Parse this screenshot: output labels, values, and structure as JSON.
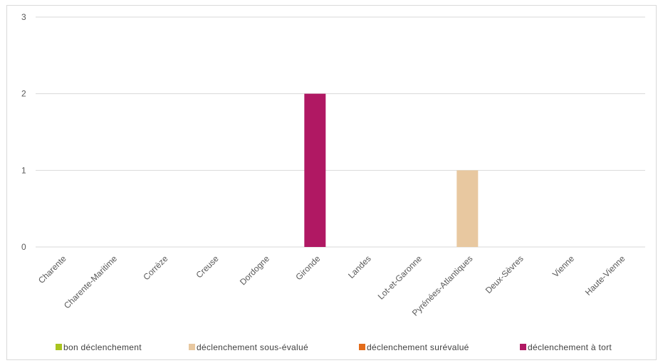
{
  "chart_data": {
    "type": "bar",
    "categories": [
      "Charente",
      "Charente-Maritime",
      "Corrèze",
      "Creuse",
      "Dordogne",
      "Gironde",
      "Landes",
      "Lot-et-Garonne",
      "Pyrénées-Atlantiques",
      "Deux-Sèvres",
      "Vienne",
      "Haute-Vienne"
    ],
    "series": [
      {
        "name": "bon déclenchement",
        "color": "#a9c41f",
        "values": [
          0,
          0,
          0,
          0,
          0,
          0,
          0,
          0,
          0,
          0,
          0,
          0
        ]
      },
      {
        "name": "déclenchement sous-évalué",
        "color": "#e8c8a0",
        "values": [
          0,
          0,
          0,
          0,
          0,
          0,
          0,
          0,
          1,
          0,
          0,
          0
        ]
      },
      {
        "name": "déclenchement surévalué",
        "color": "#e36c1b",
        "values": [
          0,
          0,
          0,
          0,
          0,
          0,
          0,
          0,
          0,
          0,
          0,
          0
        ]
      },
      {
        "name": "déclenchement à tort",
        "color": "#b01863",
        "values": [
          0,
          0,
          0,
          0,
          0,
          2,
          0,
          0,
          0,
          0,
          0,
          0
        ]
      }
    ],
    "yticks": [
      "0",
      "1",
      "2",
      "3"
    ],
    "ylim": [
      0,
      3
    ],
    "grid": true,
    "legend_position": "bottom",
    "title": "",
    "xlabel": "",
    "ylabel": ""
  }
}
